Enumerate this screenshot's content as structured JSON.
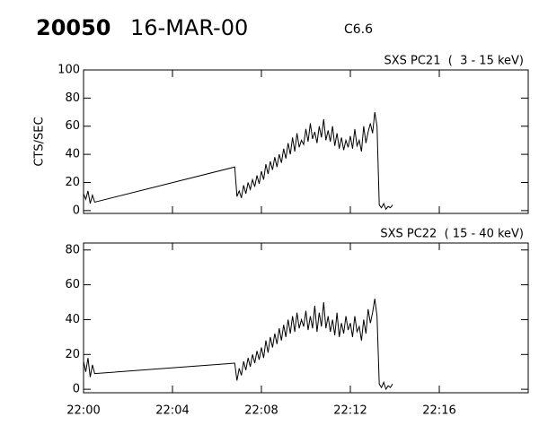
{
  "header": {
    "id": "20050",
    "date": "16-MAR-00",
    "class": "C6.6"
  },
  "chart_data": [
    {
      "type": "line",
      "title": "SXS PC21  (  3 - 15 keV)",
      "y_label": "CTS/SEC",
      "color": "#000000",
      "xlim": [
        1320,
        1340
      ],
      "xticks": [
        {
          "value": 1320,
          "label": "22:00"
        },
        {
          "value": 1324,
          "label": "22:04"
        },
        {
          "value": 1328,
          "label": "22:08"
        },
        {
          "value": 1332,
          "label": "22:12"
        },
        {
          "value": 1336,
          "label": "22:16"
        }
      ],
      "ylim": [
        -2,
        100
      ],
      "yticks": [
        0,
        20,
        40,
        60,
        80,
        100
      ],
      "x": [
        1320.0,
        1320.1,
        1320.2,
        1320.3,
        1320.4,
        1320.5,
        1326.8,
        1326.9,
        1327.0,
        1327.1,
        1327.2,
        1327.3,
        1327.4,
        1327.5,
        1327.6,
        1327.7,
        1327.8,
        1327.9,
        1328.0,
        1328.1,
        1328.2,
        1328.3,
        1328.4,
        1328.5,
        1328.6,
        1328.7,
        1328.8,
        1328.9,
        1329.0,
        1329.1,
        1329.2,
        1329.3,
        1329.4,
        1329.5,
        1329.6,
        1329.7,
        1329.8,
        1329.9,
        1330.0,
        1330.1,
        1330.2,
        1330.3,
        1330.4,
        1330.5,
        1330.6,
        1330.7,
        1330.8,
        1330.9,
        1331.0,
        1331.1,
        1331.2,
        1331.3,
        1331.4,
        1331.5,
        1331.6,
        1331.7,
        1331.8,
        1331.9,
        1332.0,
        1332.1,
        1332.2,
        1332.3,
        1332.4,
        1332.5,
        1332.6,
        1332.7,
        1332.8,
        1332.9,
        1333.0,
        1333.1,
        1333.2,
        1333.3,
        1333.4,
        1333.5,
        1333.6,
        1333.7,
        1333.8,
        1333.9
      ],
      "values": [
        12,
        8,
        14,
        5,
        11,
        6,
        31,
        10,
        14,
        9,
        18,
        12,
        20,
        15,
        22,
        17,
        25,
        19,
        28,
        22,
        33,
        26,
        35,
        29,
        38,
        31,
        40,
        34,
        44,
        37,
        48,
        40,
        52,
        42,
        55,
        45,
        50,
        47,
        58,
        49,
        62,
        51,
        56,
        48,
        60,
        52,
        65,
        50,
        57,
        49,
        60,
        46,
        55,
        44,
        52,
        43,
        50,
        45,
        53,
        44,
        58,
        46,
        50,
        42,
        60,
        48,
        56,
        62,
        55,
        70,
        60,
        4,
        2,
        5,
        1,
        3,
        2,
        4
      ]
    },
    {
      "type": "line",
      "title": "SXS PC22  ( 15 - 40 keV)",
      "color": "#000000",
      "xlim": [
        1320,
        1340
      ],
      "xticks": [
        {
          "value": 1320,
          "label": "22:00"
        },
        {
          "value": 1324,
          "label": "22:04"
        },
        {
          "value": 1328,
          "label": "22:08"
        },
        {
          "value": 1332,
          "label": "22:12"
        },
        {
          "value": 1336,
          "label": "22:16"
        }
      ],
      "ylim": [
        -2,
        84
      ],
      "yticks": [
        0,
        20,
        40,
        60,
        80
      ],
      "x": [
        1320.0,
        1320.1,
        1320.2,
        1320.3,
        1320.4,
        1320.5,
        1326.8,
        1326.9,
        1327.0,
        1327.1,
        1327.2,
        1327.3,
        1327.4,
        1327.5,
        1327.6,
        1327.7,
        1327.8,
        1327.9,
        1328.0,
        1328.1,
        1328.2,
        1328.3,
        1328.4,
        1328.5,
        1328.6,
        1328.7,
        1328.8,
        1328.9,
        1329.0,
        1329.1,
        1329.2,
        1329.3,
        1329.4,
        1329.5,
        1329.6,
        1329.7,
        1329.8,
        1329.9,
        1330.0,
        1330.1,
        1330.2,
        1330.3,
        1330.4,
        1330.5,
        1330.6,
        1330.7,
        1330.8,
        1330.9,
        1331.0,
        1331.1,
        1331.2,
        1331.3,
        1331.4,
        1331.5,
        1331.6,
        1331.7,
        1331.8,
        1331.9,
        1332.0,
        1332.1,
        1332.2,
        1332.3,
        1332.4,
        1332.5,
        1332.6,
        1332.7,
        1332.8,
        1332.9,
        1333.0,
        1333.1,
        1333.2,
        1333.3,
        1333.4,
        1333.5,
        1333.6,
        1333.7,
        1333.8,
        1333.9
      ],
      "values": [
        16,
        10,
        18,
        7,
        14,
        9,
        15,
        5,
        12,
        8,
        16,
        11,
        18,
        13,
        20,
        15,
        22,
        17,
        24,
        18,
        28,
        21,
        30,
        24,
        32,
        26,
        35,
        28,
        37,
        30,
        40,
        32,
        42,
        33,
        44,
        35,
        40,
        36,
        45,
        34,
        42,
        35,
        48,
        33,
        44,
        36,
        50,
        35,
        42,
        33,
        40,
        31,
        44,
        30,
        38,
        32,
        42,
        34,
        38,
        30,
        42,
        33,
        36,
        28,
        40,
        32,
        46,
        38,
        44,
        52,
        42,
        3,
        1,
        4,
        0,
        2,
        1,
        3
      ]
    }
  ]
}
